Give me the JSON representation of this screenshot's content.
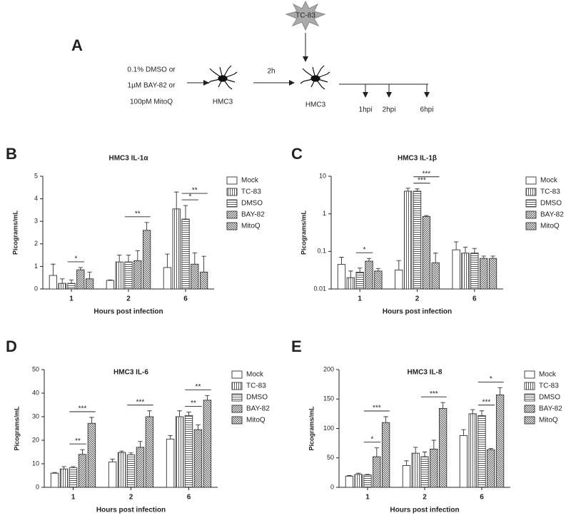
{
  "diagram": {
    "label": "A",
    "treatments": [
      "0.1% DMSO or",
      "1µM BAY-82 or",
      "100pM MitoQ"
    ],
    "cell_1": "HMC3",
    "interval": "2h",
    "cell_2": "HMC3",
    "virus": "TC-83",
    "timepoints": [
      "1hpi",
      "2hpi",
      "6hpi"
    ]
  },
  "chart_data": [
    {
      "type": "bar",
      "panel_label": "B",
      "title": "HMC3 IL-1α",
      "x_label": "Hours post infection",
      "y_label": "Picograms/mL",
      "categories": [
        "1",
        "2",
        "6"
      ],
      "ylim": [
        0,
        5
      ],
      "yticks": [
        0,
        1,
        2,
        3,
        4,
        5
      ],
      "log_scale": false,
      "series": [
        {
          "name": "Mock",
          "color": "#333333",
          "pattern": "none",
          "values": [
            0.6,
            0.38,
            0.95
          ],
          "errors": [
            0.5,
            0.02,
            0.6
          ]
        },
        {
          "name": "TC-83",
          "color": "#333333",
          "pattern": "vertical",
          "values": [
            0.25,
            1.2,
            3.55
          ],
          "errors": [
            0.2,
            0.3,
            0.75
          ]
        },
        {
          "name": "DMSO",
          "color": "#333333",
          "pattern": "horizontal",
          "values": [
            0.25,
            1.2,
            3.1
          ],
          "errors": [
            0.15,
            0.3,
            0.6
          ]
        },
        {
          "name": "BAY-82",
          "color": "#333333",
          "pattern": "diagonal-up",
          "values": [
            0.85,
            1.25,
            1.1
          ],
          "errors": [
            0.1,
            0.45,
            0.5
          ]
        },
        {
          "name": "MitoQ",
          "color": "#333333",
          "pattern": "diagonal-down",
          "values": [
            0.45,
            2.6,
            0.75
          ],
          "errors": [
            0.3,
            0.35,
            0.7
          ]
        }
      ],
      "annotations": [
        {
          "text": "*",
          "category": "1",
          "between": [
            "DMSO",
            "BAY-82"
          ]
        },
        {
          "text": "**",
          "category": "2",
          "between": [
            "DMSO",
            "MitoQ"
          ]
        },
        {
          "text": "*",
          "category": "6",
          "between": [
            "DMSO",
            "BAY-82"
          ]
        },
        {
          "text": "**",
          "category": "6",
          "between": [
            "DMSO",
            "MitoQ"
          ]
        }
      ]
    },
    {
      "type": "bar",
      "panel_label": "C",
      "title": "HMC3 IL-1β",
      "x_label": "Hours post infection",
      "y_label": "Picograms/mL",
      "categories": [
        "1",
        "2",
        "6"
      ],
      "ylim": [
        0.01,
        10
      ],
      "yticks": [
        0.01,
        0.1,
        1,
        10
      ],
      "log_scale": true,
      "series": [
        {
          "name": "Mock",
          "color": "#333333",
          "pattern": "none",
          "values": [
            0.045,
            0.032,
            0.11
          ],
          "errors": [
            0.025,
            0.025,
            0.07
          ]
        },
        {
          "name": "TC-83",
          "color": "#333333",
          "pattern": "vertical",
          "values": [
            0.02,
            4.0,
            0.09
          ],
          "errors": [
            0.01,
            0.8,
            0.04
          ]
        },
        {
          "name": "DMSO",
          "color": "#333333",
          "pattern": "horizontal",
          "values": [
            0.028,
            4.0,
            0.09
          ],
          "errors": [
            0.008,
            0.6,
            0.03
          ]
        },
        {
          "name": "BAY-82",
          "color": "#333333",
          "pattern": "diagonal-up",
          "values": [
            0.055,
            0.85,
            0.065
          ],
          "errors": [
            0.01,
            0.05,
            0.01
          ]
        },
        {
          "name": "MitoQ",
          "color": "#333333",
          "pattern": "diagonal-down",
          "values": [
            0.03,
            0.05,
            0.065
          ],
          "errors": [
            0.005,
            0.04,
            0.01
          ]
        }
      ],
      "annotations": [
        {
          "text": "*",
          "category": "1",
          "between": [
            "DMSO",
            "BAY-82"
          ]
        },
        {
          "text": "***",
          "category": "2",
          "between": [
            "DMSO",
            "BAY-82"
          ]
        },
        {
          "text": "***",
          "category": "2",
          "between": [
            "DMSO",
            "MitoQ"
          ]
        }
      ]
    },
    {
      "type": "bar",
      "panel_label": "D",
      "title": "HMC3 IL-6",
      "x_label": "Hours post infection",
      "y_label": "Picograms/mL",
      "categories": [
        "1",
        "2",
        "6"
      ],
      "ylim": [
        0,
        50
      ],
      "yticks": [
        0,
        10,
        20,
        30,
        40,
        50
      ],
      "log_scale": false,
      "series": [
        {
          "name": "Mock",
          "color": "#333333",
          "pattern": "none",
          "values": [
            6,
            10.8,
            20.5
          ],
          "errors": [
            0.3,
            1.2,
            1.5
          ]
        },
        {
          "name": "TC-83",
          "color": "#333333",
          "pattern": "vertical",
          "values": [
            7.8,
            14.8,
            30
          ],
          "errors": [
            1,
            0.6,
            2.5
          ]
        },
        {
          "name": "DMSO",
          "color": "#333333",
          "pattern": "horizontal",
          "values": [
            8.3,
            13.8,
            30.5
          ],
          "errors": [
            0.5,
            0.8,
            1.5
          ]
        },
        {
          "name": "BAY-82",
          "color": "#333333",
          "pattern": "diagonal-up",
          "values": [
            14,
            17,
            24.5
          ],
          "errors": [
            2,
            2.5,
            2
          ]
        },
        {
          "name": "MitoQ",
          "color": "#333333",
          "pattern": "diagonal-down",
          "values": [
            27.2,
            30,
            37
          ],
          "errors": [
            2.5,
            2.5,
            2
          ]
        }
      ],
      "annotations": [
        {
          "text": "**",
          "category": "1",
          "between": [
            "DMSO",
            "BAY-82"
          ]
        },
        {
          "text": "***",
          "category": "1",
          "between": [
            "DMSO",
            "MitoQ"
          ]
        },
        {
          "text": "***",
          "category": "2",
          "between": [
            "DMSO",
            "MitoQ"
          ]
        },
        {
          "text": "**",
          "category": "6",
          "between": [
            "DMSO",
            "BAY-82"
          ]
        },
        {
          "text": "**",
          "category": "6",
          "between": [
            "DMSO",
            "MitoQ"
          ]
        }
      ]
    },
    {
      "type": "bar",
      "panel_label": "E",
      "title": "HMC3 IL-8",
      "x_label": "Hours post infection",
      "y_label": "Picograms/mL",
      "categories": [
        "1",
        "2",
        "6"
      ],
      "ylim": [
        0,
        200
      ],
      "yticks": [
        0,
        50,
        100,
        150,
        200
      ],
      "log_scale": false,
      "series": [
        {
          "name": "Mock",
          "color": "#333333",
          "pattern": "none",
          "values": [
            19,
            37,
            88
          ],
          "errors": [
            1,
            8,
            10
          ]
        },
        {
          "name": "TC-83",
          "color": "#333333",
          "pattern": "vertical",
          "values": [
            22,
            58,
            125
          ],
          "errors": [
            2,
            10,
            7
          ]
        },
        {
          "name": "DMSO",
          "color": "#333333",
          "pattern": "horizontal",
          "values": [
            21,
            52,
            122
          ],
          "errors": [
            1,
            8,
            8
          ]
        },
        {
          "name": "BAY-82",
          "color": "#333333",
          "pattern": "diagonal-up",
          "values": [
            52,
            65,
            64
          ],
          "errors": [
            15,
            15,
            2
          ]
        },
        {
          "name": "MitoQ",
          "color": "#333333",
          "pattern": "diagonal-down",
          "values": [
            110,
            134,
            157
          ],
          "errors": [
            10,
            10,
            12
          ]
        }
      ],
      "annotations": [
        {
          "text": "*",
          "category": "1",
          "between": [
            "DMSO",
            "BAY-82"
          ]
        },
        {
          "text": "***",
          "category": "1",
          "between": [
            "DMSO",
            "MitoQ"
          ]
        },
        {
          "text": "***",
          "category": "2",
          "between": [
            "DMSO",
            "MitoQ"
          ]
        },
        {
          "text": "***",
          "category": "6",
          "between": [
            "DMSO",
            "BAY-82"
          ]
        },
        {
          "text": "*",
          "category": "6",
          "between": [
            "DMSO",
            "MitoQ"
          ]
        }
      ]
    }
  ]
}
